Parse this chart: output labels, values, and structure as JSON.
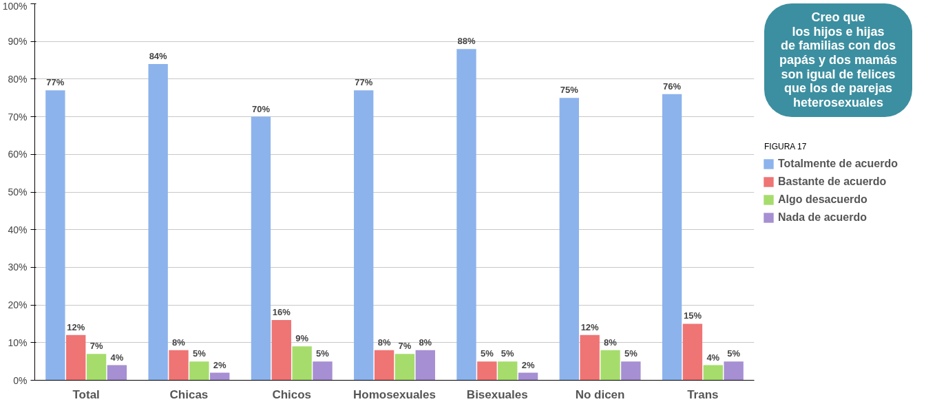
{
  "chart_data": {
    "type": "bar",
    "title": "Creo que\nlos hijos e hijas\nde familias con dos\npapás y dos mamás\nson igual de felices\nque los de parejas\nheterosexuales",
    "categories": [
      "Total",
      "Chicas",
      "Chicos",
      "Homosexuales",
      "Bisexuales",
      "No dicen",
      "Trans"
    ],
    "series": [
      {
        "name": "Totalmente de acuerdo",
        "color": "#8db3ec",
        "values": [
          77,
          84,
          70,
          77,
          88,
          75,
          76
        ],
        "value_labels": [
          "77%",
          "84%",
          "70%",
          "77%",
          "88%",
          "75%",
          "76%"
        ]
      },
      {
        "name": "Bastante de acuerdo",
        "color": "#ef7474",
        "values": [
          12,
          8,
          16,
          8,
          5,
          12,
          15
        ],
        "value_labels": [
          "12%",
          "8%",
          "16%",
          "8%",
          "5%",
          "12%",
          "15%"
        ]
      },
      {
        "name": "Algo desacuerdo",
        "color": "#a6dc6c",
        "values": [
          7,
          5,
          9,
          7,
          5,
          8,
          4
        ],
        "value_labels": [
          "7%",
          "5%",
          "9%",
          "7%",
          "5%",
          "8%",
          "4%"
        ]
      },
      {
        "name": "Nada de acuerdo",
        "color": "#a68fd2",
        "values": [
          4,
          2,
          5,
          8,
          2,
          5,
          5
        ],
        "value_labels": [
          "4%",
          "2%",
          "5%",
          "8%",
          "2%",
          "5%",
          "5%"
        ]
      }
    ],
    "ylim": [
      0,
      100
    ],
    "yticks": [
      {
        "value": 0,
        "label": "0%"
      },
      {
        "value": 10,
        "label": "10%"
      },
      {
        "value": 20,
        "label": "20%"
      },
      {
        "value": 30,
        "label": "30%"
      },
      {
        "value": 40,
        "label": "40%"
      },
      {
        "value": 50,
        "label": "50%"
      },
      {
        "value": 60,
        "label": "60%"
      },
      {
        "value": 70,
        "label": "70%"
      },
      {
        "value": 80,
        "label": "80%"
      },
      {
        "value": 90,
        "label": "90%"
      },
      {
        "value": 100,
        "label": "100%"
      }
    ],
    "grid": "y",
    "legend": "right",
    "annotations": [
      "FIGURA 17"
    ]
  }
}
